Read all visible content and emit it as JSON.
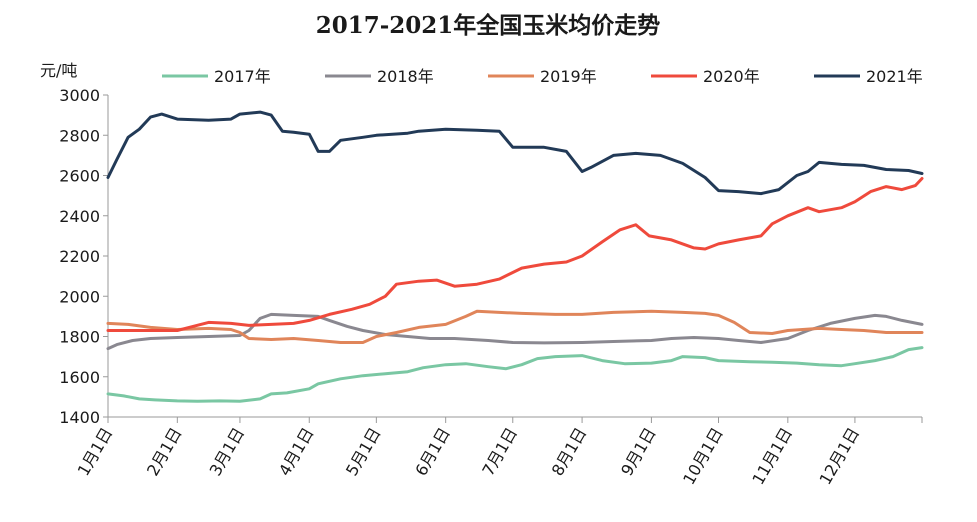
{
  "chart_data": {
    "type": "line",
    "title": "2017-2021年全国玉米均价走势",
    "ylabel": "元/吨",
    "xlabel": "",
    "ylim": [
      1400,
      3000
    ],
    "yticks": [
      1400,
      1600,
      1800,
      2000,
      2200,
      2400,
      2600,
      2800,
      3000
    ],
    "grid": false,
    "legend_position": "top",
    "x_tick_labels": [
      "1月1日",
      "2月1日",
      "3月1日",
      "4月1日",
      "5月1日",
      "6月1日",
      "7月1日",
      "8月1日",
      "9月1日",
      "10月1日",
      "11月1日",
      "12月1日"
    ],
    "x_tick_doy": [
      1,
      32,
      60,
      91,
      121,
      152,
      182,
      213,
      244,
      274,
      305,
      335
    ],
    "x_range_doy": [
      1,
      365
    ],
    "series": [
      {
        "name": "2017年",
        "color": "#7ac7a3",
        "points": [
          [
            "01-01",
            1515
          ],
          [
            "01-08",
            1505
          ],
          [
            "01-15",
            1490
          ],
          [
            "01-22",
            1485
          ],
          [
            "02-01",
            1480
          ],
          [
            "02-10",
            1478
          ],
          [
            "02-20",
            1480
          ],
          [
            "03-01",
            1478
          ],
          [
            "03-10",
            1490
          ],
          [
            "03-15",
            1515
          ],
          [
            "03-22",
            1520
          ],
          [
            "04-01",
            1540
          ],
          [
            "04-05",
            1565
          ],
          [
            "04-15",
            1590
          ],
          [
            "04-25",
            1605
          ],
          [
            "05-05",
            1615
          ],
          [
            "05-15",
            1625
          ],
          [
            "05-22",
            1645
          ],
          [
            "06-01",
            1660
          ],
          [
            "06-10",
            1665
          ],
          [
            "06-20",
            1650
          ],
          [
            "06-28",
            1640
          ],
          [
            "07-05",
            1660
          ],
          [
            "07-12",
            1690
          ],
          [
            "07-20",
            1700
          ],
          [
            "08-01",
            1705
          ],
          [
            "08-10",
            1680
          ],
          [
            "08-20",
            1665
          ],
          [
            "09-01",
            1668
          ],
          [
            "09-10",
            1680
          ],
          [
            "09-15",
            1700
          ],
          [
            "09-25",
            1695
          ],
          [
            "10-01",
            1680
          ],
          [
            "10-15",
            1675
          ],
          [
            "10-25",
            1672
          ],
          [
            "11-05",
            1668
          ],
          [
            "11-15",
            1660
          ],
          [
            "11-25",
            1655
          ],
          [
            "12-01",
            1665
          ],
          [
            "12-10",
            1680
          ],
          [
            "12-18",
            1700
          ],
          [
            "12-25",
            1735
          ],
          [
            "12-31",
            1745
          ]
        ]
      },
      {
        "name": "2018年",
        "color": "#8a8890",
        "points": [
          [
            "01-01",
            1740
          ],
          [
            "01-05",
            1760
          ],
          [
            "01-12",
            1780
          ],
          [
            "01-20",
            1790
          ],
          [
            "02-01",
            1795
          ],
          [
            "02-15",
            1800
          ],
          [
            "03-01",
            1805
          ],
          [
            "03-05",
            1830
          ],
          [
            "03-10",
            1890
          ],
          [
            "03-15",
            1910
          ],
          [
            "03-25",
            1905
          ],
          [
            "04-05",
            1900
          ],
          [
            "04-10",
            1880
          ],
          [
            "04-18",
            1850
          ],
          [
            "04-25",
            1830
          ],
          [
            "05-05",
            1810
          ],
          [
            "05-15",
            1800
          ],
          [
            "05-25",
            1790
          ],
          [
            "06-05",
            1790
          ],
          [
            "06-20",
            1780
          ],
          [
            "07-01",
            1770
          ],
          [
            "07-15",
            1768
          ],
          [
            "08-01",
            1770
          ],
          [
            "08-15",
            1775
          ],
          [
            "09-01",
            1780
          ],
          [
            "09-10",
            1790
          ],
          [
            "09-20",
            1795
          ],
          [
            "10-01",
            1790
          ],
          [
            "10-10",
            1780
          ],
          [
            "10-20",
            1770
          ],
          [
            "11-01",
            1790
          ],
          [
            "11-10",
            1830
          ],
          [
            "11-20",
            1865
          ],
          [
            "12-01",
            1890
          ],
          [
            "12-10",
            1905
          ],
          [
            "12-15",
            1900
          ],
          [
            "12-22",
            1880
          ],
          [
            "12-31",
            1860
          ]
        ]
      },
      {
        "name": "2019年",
        "color": "#e0855a",
        "points": [
          [
            "01-01",
            1865
          ],
          [
            "01-10",
            1860
          ],
          [
            "01-20",
            1845
          ],
          [
            "02-01",
            1835
          ],
          [
            "02-15",
            1840
          ],
          [
            "02-25",
            1835
          ],
          [
            "03-01",
            1820
          ],
          [
            "03-05",
            1790
          ],
          [
            "03-15",
            1785
          ],
          [
            "03-25",
            1790
          ],
          [
            "04-05",
            1780
          ],
          [
            "04-15",
            1770
          ],
          [
            "04-25",
            1770
          ],
          [
            "05-01",
            1800
          ],
          [
            "05-10",
            1820
          ],
          [
            "05-20",
            1845
          ],
          [
            "06-01",
            1860
          ],
          [
            "06-10",
            1900
          ],
          [
            "06-15",
            1925
          ],
          [
            "06-25",
            1920
          ],
          [
            "07-05",
            1915
          ],
          [
            "07-20",
            1910
          ],
          [
            "08-01",
            1910
          ],
          [
            "08-15",
            1920
          ],
          [
            "09-01",
            1925
          ],
          [
            "09-15",
            1920
          ],
          [
            "09-25",
            1915
          ],
          [
            "10-01",
            1905
          ],
          [
            "10-08",
            1870
          ],
          [
            "10-15",
            1820
          ],
          [
            "10-25",
            1815
          ],
          [
            "11-01",
            1830
          ],
          [
            "11-15",
            1840
          ],
          [
            "11-25",
            1835
          ],
          [
            "12-05",
            1830
          ],
          [
            "12-15",
            1820
          ],
          [
            "12-31",
            1820
          ]
        ]
      },
      {
        "name": "2020年",
        "color": "#ef4a3c",
        "points": [
          [
            "01-01",
            1830
          ],
          [
            "01-15",
            1830
          ],
          [
            "02-01",
            1830
          ],
          [
            "02-08",
            1850
          ],
          [
            "02-15",
            1870
          ],
          [
            "02-25",
            1865
          ],
          [
            "03-05",
            1855
          ],
          [
            "03-15",
            1860
          ],
          [
            "03-25",
            1865
          ],
          [
            "04-01",
            1880
          ],
          [
            "04-10",
            1910
          ],
          [
            "04-20",
            1935
          ],
          [
            "04-28",
            1960
          ],
          [
            "05-05",
            2000
          ],
          [
            "05-10",
            2060
          ],
          [
            "05-20",
            2075
          ],
          [
            "05-28",
            2080
          ],
          [
            "06-05",
            2050
          ],
          [
            "06-15",
            2060
          ],
          [
            "06-25",
            2085
          ],
          [
            "07-05",
            2140
          ],
          [
            "07-15",
            2160
          ],
          [
            "07-25",
            2170
          ],
          [
            "08-01",
            2200
          ],
          [
            "08-10",
            2270
          ],
          [
            "08-18",
            2330
          ],
          [
            "08-25",
            2355
          ],
          [
            "08-31",
            2300
          ],
          [
            "09-10",
            2280
          ],
          [
            "09-20",
            2240
          ],
          [
            "09-25",
            2235
          ],
          [
            "10-01",
            2260
          ],
          [
            "10-10",
            2280
          ],
          [
            "10-20",
            2300
          ],
          [
            "10-25",
            2360
          ],
          [
            "11-01",
            2400
          ],
          [
            "11-10",
            2440
          ],
          [
            "11-15",
            2420
          ],
          [
            "11-25",
            2440
          ],
          [
            "12-01",
            2470
          ],
          [
            "12-08",
            2520
          ],
          [
            "12-15",
            2545
          ],
          [
            "12-22",
            2530
          ],
          [
            "12-28",
            2550
          ],
          [
            "12-31",
            2585
          ]
        ]
      },
      {
        "name": "2021年",
        "color": "#223a57",
        "points": [
          [
            "01-01",
            2590
          ],
          [
            "01-05",
            2680
          ],
          [
            "01-10",
            2790
          ],
          [
            "01-15",
            2830
          ],
          [
            "01-20",
            2890
          ],
          [
            "01-25",
            2905
          ],
          [
            "02-01",
            2880
          ],
          [
            "02-15",
            2875
          ],
          [
            "02-25",
            2880
          ],
          [
            "03-01",
            2905
          ],
          [
            "03-10",
            2915
          ],
          [
            "03-15",
            2900
          ],
          [
            "03-20",
            2820
          ],
          [
            "03-25",
            2815
          ],
          [
            "04-01",
            2805
          ],
          [
            "04-05",
            2720
          ],
          [
            "04-10",
            2720
          ],
          [
            "04-15",
            2775
          ],
          [
            "04-25",
            2790
          ],
          [
            "05-01",
            2800
          ],
          [
            "05-15",
            2810
          ],
          [
            "05-20",
            2820
          ],
          [
            "06-01",
            2830
          ],
          [
            "06-15",
            2825
          ],
          [
            "06-25",
            2820
          ],
          [
            "07-01",
            2740
          ],
          [
            "07-15",
            2740
          ],
          [
            "07-25",
            2720
          ],
          [
            "08-01",
            2620
          ],
          [
            "08-05",
            2640
          ],
          [
            "08-15",
            2700
          ],
          [
            "08-25",
            2710
          ],
          [
            "09-05",
            2700
          ],
          [
            "09-15",
            2660
          ],
          [
            "09-25",
            2590
          ],
          [
            "10-01",
            2525
          ],
          [
            "10-10",
            2520
          ],
          [
            "10-20",
            2510
          ],
          [
            "10-28",
            2530
          ],
          [
            "11-05",
            2600
          ],
          [
            "11-10",
            2620
          ],
          [
            "11-15",
            2665
          ],
          [
            "11-25",
            2655
          ],
          [
            "12-05",
            2650
          ],
          [
            "12-15",
            2630
          ],
          [
            "12-25",
            2625
          ],
          [
            "12-31",
            2610
          ]
        ]
      }
    ]
  }
}
